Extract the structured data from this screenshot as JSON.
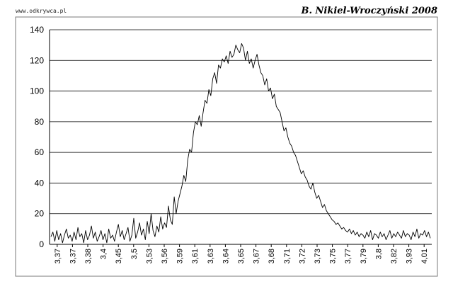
{
  "header": {
    "left_text": "www.odkrywca.pl",
    "right_text": "B. Nikiel-Wroczyński 2008"
  },
  "chart_data": {
    "type": "line",
    "title": "",
    "xlabel": "",
    "ylabel": "",
    "ylim": [
      0,
      140
    ],
    "yticks": [
      0,
      20,
      40,
      60,
      80,
      100,
      120,
      140
    ],
    "grid": true,
    "legend": "none",
    "x_tick_labels": [
      "3,37",
      "3,37",
      "3,38",
      "3,4",
      "3,45",
      "3,5",
      "3,53",
      "3,56",
      "3,59",
      "3,61",
      "3,63",
      "3,64",
      "3,65",
      "3,67",
      "3,68",
      "3,71",
      "3,72",
      "3,73",
      "3,75",
      "3,77",
      "3,79",
      "3,8",
      "3,82",
      "3,93",
      "4,01"
    ],
    "series_color": "#000000",
    "key_points": [
      [
        0,
        5
      ],
      [
        2,
        8
      ],
      [
        4,
        7
      ],
      [
        6,
        6
      ],
      [
        8,
        5
      ],
      [
        10,
        4
      ],
      [
        12,
        6
      ],
      [
        14,
        8
      ],
      [
        16,
        6
      ],
      [
        18,
        5
      ],
      [
        20,
        6
      ],
      [
        22,
        8
      ],
      [
        24,
        9
      ],
      [
        26,
        10
      ],
      [
        28,
        12
      ],
      [
        29,
        18
      ],
      [
        30,
        14
      ],
      [
        31,
        20
      ],
      [
        32,
        24
      ],
      [
        33,
        32
      ],
      [
        34,
        38
      ],
      [
        35,
        45
      ],
      [
        36,
        55
      ],
      [
        37,
        62
      ],
      [
        38,
        72
      ],
      [
        38.5,
        80
      ],
      [
        39,
        78
      ],
      [
        40,
        82
      ],
      [
        40.5,
        90
      ],
      [
        41,
        92
      ],
      [
        41.5,
        100
      ],
      [
        42,
        105
      ],
      [
        42.5,
        108
      ],
      [
        43,
        112
      ],
      [
        43.5,
        114
      ],
      [
        44,
        116
      ],
      [
        45,
        118
      ],
      [
        45.5,
        121
      ],
      [
        46,
        124
      ],
      [
        46.5,
        125
      ],
      [
        47,
        128
      ],
      [
        47.5,
        130
      ],
      [
        48,
        126
      ],
      [
        48.5,
        124
      ],
      [
        49,
        120
      ],
      [
        49.5,
        118
      ],
      [
        50,
        114
      ],
      [
        50.5,
        110
      ],
      [
        51,
        104
      ],
      [
        51.5,
        100
      ],
      [
        52,
        98
      ],
      [
        52.5,
        94
      ],
      [
        53,
        88
      ],
      [
        53.5,
        80
      ],
      [
        54,
        72
      ],
      [
        54.5,
        66
      ],
      [
        55,
        62
      ],
      [
        55.5,
        58
      ],
      [
        56,
        52
      ],
      [
        56.5,
        48
      ],
      [
        57,
        44
      ],
      [
        57.5,
        40
      ],
      [
        58,
        36
      ],
      [
        58.5,
        32
      ],
      [
        59,
        28
      ],
      [
        59.5,
        24
      ],
      [
        60,
        20
      ],
      [
        60.5,
        16
      ],
      [
        61,
        14
      ],
      [
        62,
        12
      ],
      [
        63,
        10
      ],
      [
        64,
        8
      ],
      [
        65,
        7
      ],
      [
        66,
        6
      ],
      [
        68,
        6
      ],
      [
        70,
        7
      ],
      [
        72,
        6
      ],
      [
        74,
        5
      ],
      [
        76,
        6
      ],
      [
        78,
        7
      ],
      [
        80,
        6
      ],
      [
        82,
        7
      ],
      [
        84,
        6
      ]
    ],
    "series": [
      {
        "values": [
          5,
          8,
          2,
          9,
          3,
          7,
          1,
          6,
          10,
          4,
          6,
          2,
          8,
          3,
          11,
          5,
          7,
          1,
          9,
          3,
          6,
          12,
          4,
          8,
          2,
          5,
          9,
          3,
          7,
          1,
          10,
          4,
          6,
          2,
          8,
          13,
          5,
          9,
          3,
          7,
          11,
          2,
          6,
          17,
          4,
          8,
          14,
          6,
          10,
          3,
          15,
          7,
          20,
          9,
          5,
          12,
          8,
          18,
          10,
          14,
          11,
          25,
          16,
          13,
          31,
          20,
          28,
          33,
          38,
          45,
          41,
          55,
          62,
          60,
          73,
          80,
          78,
          84,
          77,
          86,
          94,
          92,
          101,
          97,
          108,
          112,
          105,
          117,
          115,
          121,
          119,
          123,
          118,
          126,
          122,
          124,
          130,
          127,
          125,
          131,
          128,
          120,
          126,
          118,
          121,
          115,
          120,
          124,
          117,
          112,
          110,
          104,
          108,
          100,
          102,
          95,
          98,
          90,
          88,
          86,
          80,
          74,
          76,
          70,
          66,
          64,
          60,
          58,
          54,
          50,
          46,
          48,
          44,
          42,
          38,
          36,
          40,
          34,
          30,
          32,
          28,
          24,
          26,
          22,
          20,
          18,
          16,
          15,
          13,
          14,
          12,
          10,
          11,
          9,
          8,
          10,
          7,
          9,
          6,
          8,
          5,
          7,
          6,
          4,
          8,
          5,
          9,
          3,
          7,
          6,
          4,
          8,
          5,
          7,
          3,
          6,
          9,
          4,
          7,
          5,
          8,
          6,
          4,
          9,
          5,
          7,
          6,
          3,
          8,
          5,
          10,
          4,
          7,
          6,
          9,
          5,
          8,
          4
        ]
      }
    ]
  }
}
